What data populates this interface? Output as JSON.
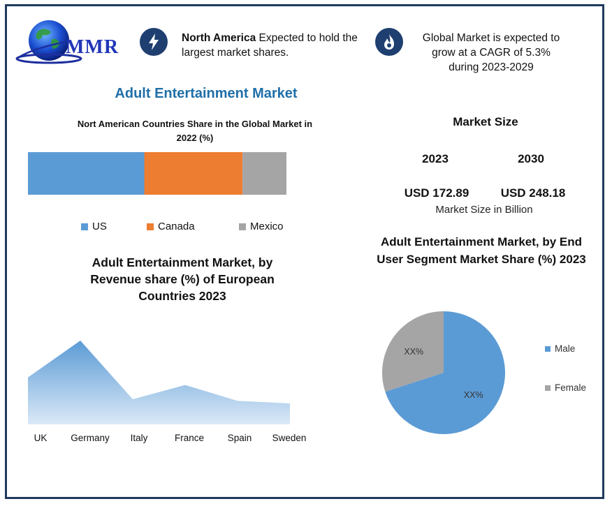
{
  "header": {
    "logo_text": "MMR",
    "info1_bold": "North America",
    "info1_rest": " Expected to hold the largest market shares.",
    "info2_line1": "Global Market is expected to",
    "info2_line2": "grow at a CAGR of 5.3%",
    "info2_line3": "during 2023-2029",
    "icons": [
      "lightning-icon",
      "flame-icon"
    ]
  },
  "main_title": "Adult Entertainment  Market",
  "market_size": {
    "title": "Market Size",
    "years": [
      "2023",
      "2030"
    ],
    "values": [
      "USD 172.89",
      "USD 248.18"
    ],
    "note": "Market Size in Billion"
  },
  "colors": {
    "us": "#5b9bd5",
    "canada": "#ed7d31",
    "mexico": "#a5a5a5",
    "male": "#5b9bd5",
    "female": "#a5a5a5",
    "title_blue": "#1f6fa8",
    "badge": "#1f3f70"
  },
  "chart_data": [
    {
      "type": "bar",
      "stacked": true,
      "orientation": "horizontal",
      "title": "Nort American Countries Share in the Global Market in 2022  (%)",
      "categories": [
        ""
      ],
      "series": [
        {
          "name": "US",
          "values": [
            45
          ]
        },
        {
          "name": "Canada",
          "values": [
            38
          ]
        },
        {
          "name": "Mexico",
          "values": [
            17
          ]
        }
      ],
      "legend": "bottom"
    },
    {
      "type": "area",
      "title": "Adult Entertainment Market, by Revenue share (%) of European Countries 2023",
      "x": [
        "UK",
        "Germany",
        "Italy",
        "France",
        "Spain",
        "Sweden"
      ],
      "values": [
        56,
        100,
        30,
        47,
        28,
        25
      ],
      "grid": false
    },
    {
      "type": "pie",
      "title": "Adult Entertainment Market, by End User Segment Market Share (%) 2023",
      "labels": [
        "Male",
        "Female"
      ],
      "values": [
        70,
        30
      ],
      "data_labels": [
        "XX%",
        "XX%"
      ],
      "legend": "right"
    }
  ]
}
